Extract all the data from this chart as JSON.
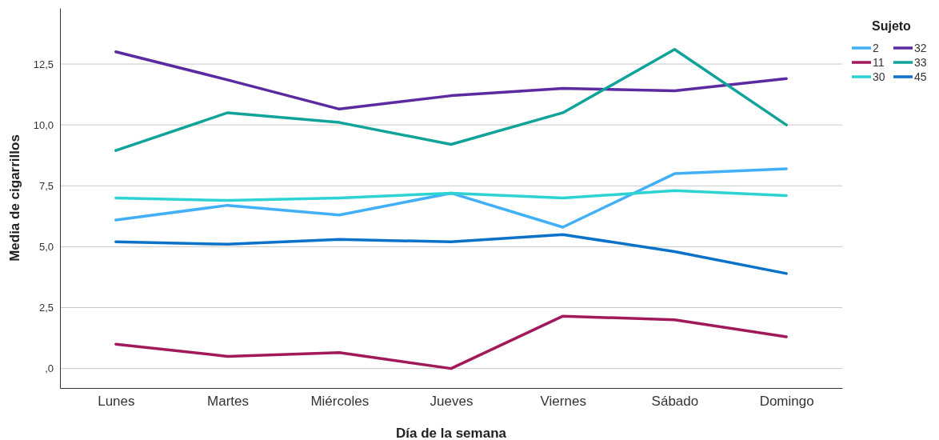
{
  "chart_data": {
    "type": "line",
    "xlabel": "Día de la semana",
    "ylabel": "Media de cigarrillos",
    "legend_title": "Sujeto",
    "legend": "top right",
    "grid": "y",
    "marker": "none",
    "line_style": "solid",
    "categories": [
      "Lunes",
      "Martes",
      "Miércoles",
      "Jueves",
      "Viernes",
      "Sábado",
      "Domingo"
    ],
    "ylim": [
      -0.8,
      14.8
    ],
    "yticks": [
      {
        "value": 0,
        "label": ",0"
      },
      {
        "value": 2.5,
        "label": "2,5"
      },
      {
        "value": 5,
        "label": "5,0"
      },
      {
        "value": 7.5,
        "label": "7,5"
      },
      {
        "value": 10,
        "label": "10,0"
      },
      {
        "value": 12.5,
        "label": "12,5"
      }
    ],
    "series": [
      {
        "name": "2",
        "color": "#41b0f6",
        "values": [
          6.1,
          6.7,
          6.3,
          7.2,
          5.8,
          8.0,
          8.2
        ]
      },
      {
        "name": "11",
        "color": "#a2195a",
        "values": [
          1.0,
          0.5,
          0.65,
          0,
          2.15,
          2.0,
          1.3
        ]
      },
      {
        "name": "30",
        "color": "#2dd3d3",
        "values": [
          7.0,
          6.9,
          7.0,
          7.2,
          7.0,
          7.3,
          7.1
        ]
      },
      {
        "name": "32",
        "color": "#5b2aa0",
        "values": [
          13.0,
          11.85,
          10.65,
          11.2,
          11.5,
          11.4,
          11.9
        ]
      },
      {
        "name": "33",
        "color": "#0fa39a",
        "values": [
          8.95,
          10.5,
          10.1,
          9.2,
          10.5,
          13.1,
          10.0
        ]
      },
      {
        "name": "45",
        "color": "#0a72c8",
        "values": [
          5.2,
          5.1,
          5.3,
          5.2,
          5.5,
          4.8,
          3.9
        ]
      }
    ]
  }
}
